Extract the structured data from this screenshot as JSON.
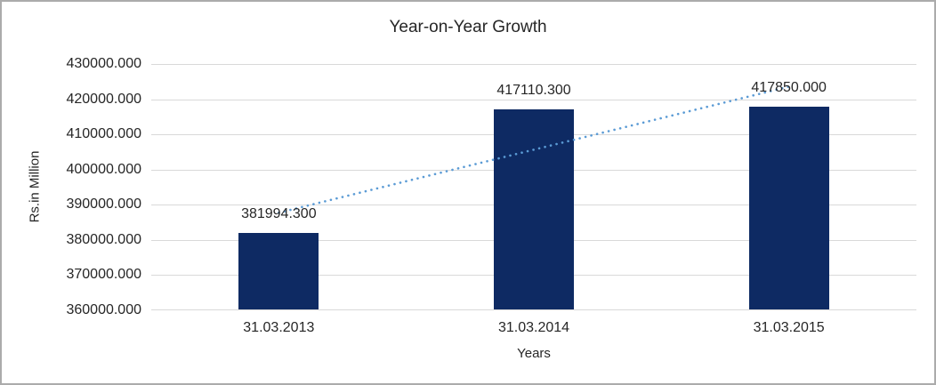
{
  "page": {
    "background": "#ffffff",
    "border_color": "#ababab"
  },
  "chart_data": {
    "type": "bar",
    "title": "Year-on-Year Growth",
    "xlabel": "Years",
    "ylabel": "Rs.in Million",
    "categories": [
      "31.03.2013",
      "31.03.2014",
      "31.03.2015"
    ],
    "values": [
      381994.3,
      417110.3,
      417850.0
    ],
    "data_labels": [
      "381994.300",
      "417110.300",
      "417850.000"
    ],
    "ylim": [
      360000,
      430000
    ],
    "ytick_step": 10000,
    "ytick_decimals": 3,
    "grid": true,
    "legend": "none",
    "bar_color": "#0e2a63",
    "gridline_color": "#d9d9d9",
    "text_color": "#262626",
    "trendline": {
      "style": "dotted",
      "color": "#5b9bd5",
      "start_value": 387723.7,
      "end_value": 423579.4
    }
  }
}
